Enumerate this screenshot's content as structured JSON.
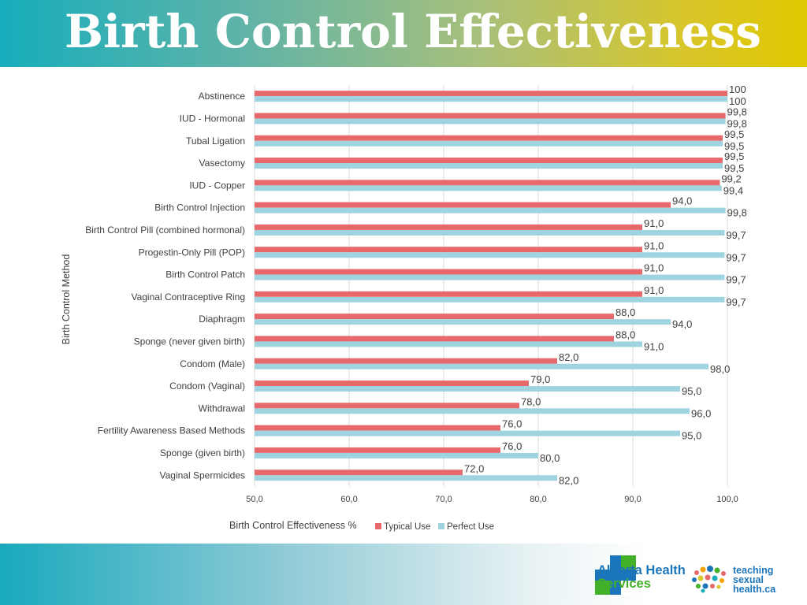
{
  "header": {
    "title": "Birth Control Effectiveness"
  },
  "colors": {
    "typical": "#e8696b",
    "perfect": "#9fd3df"
  },
  "chart_data": {
    "type": "bar",
    "orientation": "horizontal",
    "categories": [
      "Abstinence",
      "IUD - Hormonal",
      "Tubal Ligation",
      "Vasectomy",
      "IUD - Copper",
      "Birth Control Injection",
      "Birth Control Pill (combined hormonal)",
      "Progestin-Only Pill (POP)",
      "Birth Control Patch",
      "Vaginal Contraceptive Ring",
      "Diaphragm",
      "Sponge (never given birth)",
      "Condom (Male)",
      "Condom (Vaginal)",
      "Withdrawal",
      "Fertility Awareness Based Methods",
      "Sponge (given birth)",
      "Vaginal Spermicides"
    ],
    "series": [
      {
        "name": "Typical Use",
        "values": [
          100,
          99.8,
          99.5,
          99.5,
          99.2,
          94.0,
          91.0,
          91.0,
          91.0,
          91.0,
          88.0,
          88.0,
          82.0,
          79.0,
          78.0,
          76.0,
          76.0,
          72.0
        ],
        "labels": [
          "100",
          "99,8",
          "99,5",
          "99,5",
          "99,2",
          "94,0",
          "91,0",
          "91,0",
          "91,0",
          "91,0",
          "88,0",
          "88,0",
          "82,0",
          "79,0",
          "78,0",
          "76,0",
          "76,0",
          "72,0"
        ]
      },
      {
        "name": "Perfect Use",
        "values": [
          100,
          99.8,
          99.5,
          99.5,
          99.4,
          99.8,
          99.7,
          99.7,
          99.7,
          99.7,
          94.0,
          91.0,
          98.0,
          95.0,
          96.0,
          95.0,
          80.0,
          82.0
        ],
        "labels": [
          "100",
          "99,8",
          "99,5",
          "99,5",
          "99,4",
          "99,8",
          "99,7",
          "99,7",
          "99,7",
          "99,7",
          "94,0",
          "91,0",
          "98,0",
          "95,0",
          "96,0",
          "95,0",
          "80,0",
          "82,0"
        ]
      }
    ],
    "xlim": [
      50,
      100
    ],
    "xticks": [
      "50,0",
      "60,0",
      "70,0",
      "80,0",
      "90,0",
      "100,0"
    ],
    "xlabel": "Birth Control Effectiveness %",
    "ylabel": "Birth Control Method",
    "legend": [
      "Typical Use",
      "Perfect Use"
    ]
  },
  "footer": {
    "logo1_line1": "Alberta Health",
    "logo1_line2": "Services",
    "logo2_line1": "teaching",
    "logo2_line2": "sexual",
    "logo2_line3": "health.ca"
  }
}
